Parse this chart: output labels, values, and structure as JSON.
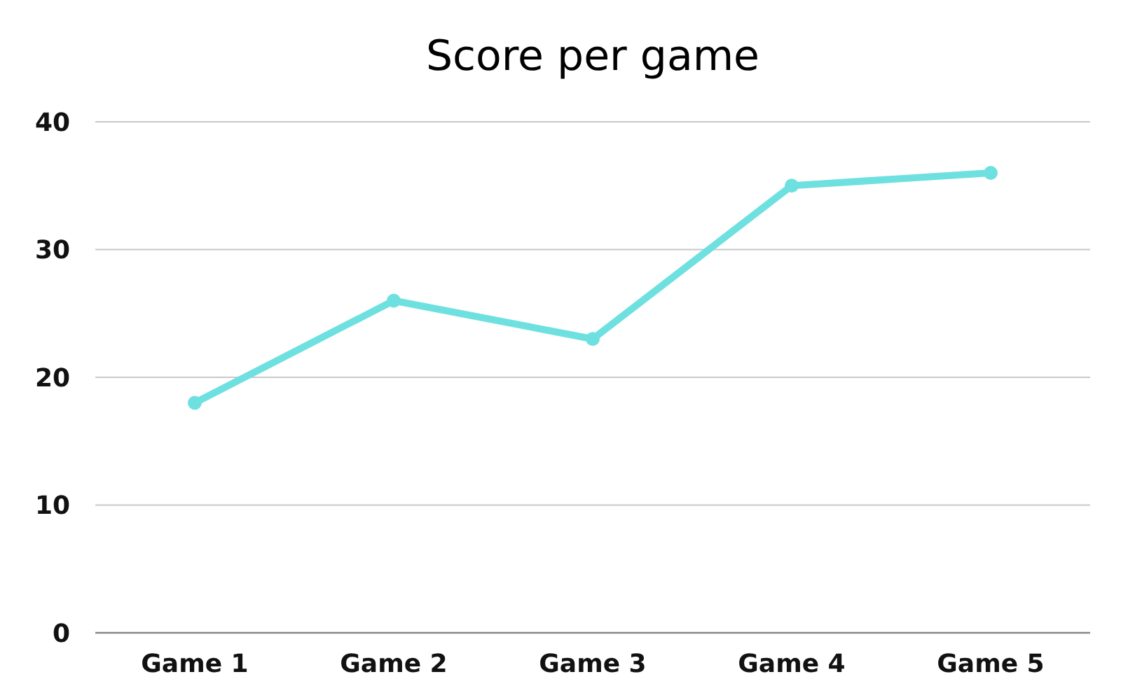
{
  "chart_data": {
    "type": "line",
    "title": "Score per game",
    "categories": [
      "Game 1",
      "Game 2",
      "Game 3",
      "Game 4",
      "Game 5"
    ],
    "series": [
      {
        "color": "#6fe0e0",
        "values": [
          18,
          26,
          23,
          35,
          36
        ]
      }
    ],
    "ylim": [
      0,
      40
    ],
    "yticks": [
      0,
      10,
      20,
      30,
      40
    ],
    "grid": "y",
    "marker": "circle",
    "line_style": "solid"
  }
}
